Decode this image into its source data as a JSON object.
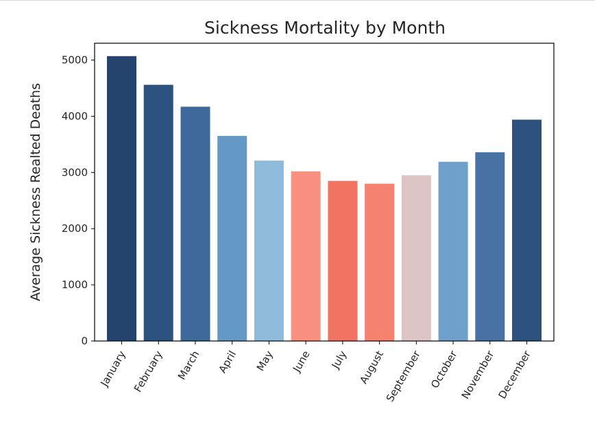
{
  "chart_data": {
    "type": "bar",
    "title": "Sickness Mortality by Month",
    "xlabel": "",
    "ylabel": "Average Sickness Realted Deaths",
    "categories": [
      "January",
      "February",
      "March",
      "April",
      "May",
      "June",
      "July",
      "August",
      "September",
      "October",
      "November",
      "December"
    ],
    "values": [
      5070,
      4560,
      4170,
      3650,
      3210,
      3020,
      2850,
      2800,
      2950,
      3190,
      3360,
      3940
    ],
    "colors": [
      "#26456e",
      "#2c5280",
      "#3d6a9a",
      "#6498c6",
      "#8fbbdb",
      "#fa9180",
      "#f27463",
      "#f68270",
      "#dbc4c1",
      "#6ea0cb",
      "#4772a3",
      "#2c5280"
    ],
    "ylim": [
      0,
      5300
    ],
    "yticks": [
      0,
      1000,
      2000,
      3000,
      4000,
      5000
    ],
    "grid": false,
    "legend": false
  }
}
